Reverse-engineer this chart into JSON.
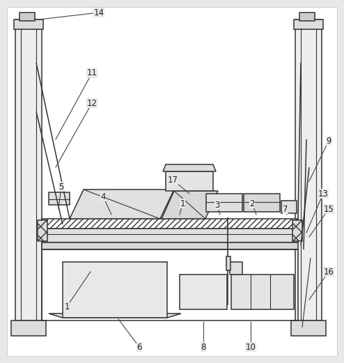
{
  "bg_color": "#e8e8e8",
  "line_color": "#333333",
  "fig_width": 4.94,
  "fig_height": 5.21,
  "white_bg": "#ffffff"
}
